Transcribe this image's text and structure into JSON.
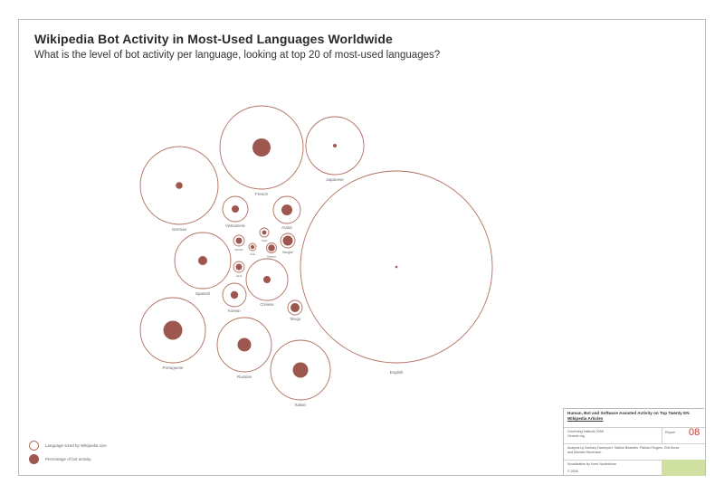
{
  "header": {
    "title": "Wikipedia Bot Activity in Most-Used Languages Worldwide",
    "subtitle": "What is the level of bot activity per language, looking at top 20 of most-used languages?"
  },
  "legend": {
    "outline_label": "Language sized by Wikipedia size",
    "fill_label": "Percentage of bot activity"
  },
  "colors": {
    "outline": "#b07060",
    "fill": "#9e574e",
    "frame": "#bdbdbd",
    "green_box": "#cfe0a0",
    "number": "#c0392b"
  },
  "chart_data": {
    "type": "bubble",
    "encoding": "outer circle size = Wikipedia size; inner filled circle = percentage of bot activity",
    "series": [
      {
        "name": "English",
        "outer": 106,
        "inner": 1.3
      },
      {
        "name": "French",
        "outer": 46,
        "inner": 10
      },
      {
        "name": "Japanese",
        "outer": 32,
        "inner": 2
      },
      {
        "name": "German",
        "outer": 43,
        "inner": 3.8
      },
      {
        "name": "Vietnamese",
        "outer": 14,
        "inner": 4
      },
      {
        "name": "Arabic",
        "outer": 15,
        "inner": 6
      },
      {
        "name": "Spanish",
        "outer": 31,
        "inner": 5
      },
      {
        "name": "Bengali",
        "outer": 8,
        "inner": 5.5
      },
      {
        "name": "Tamil",
        "outer": 5,
        "inner": 2.4
      },
      {
        "name": "Urdu",
        "outer": 4,
        "inner": 2.2
      },
      {
        "name": "Marathi",
        "outer": 6,
        "inner": 3.5
      },
      {
        "name": "Javanese",
        "outer": 5.5,
        "inner": 3.8
      },
      {
        "name": "Hindi",
        "outer": 6,
        "inner": 3.5
      },
      {
        "name": "Chinese",
        "outer": 23,
        "inner": 4
      },
      {
        "name": "Korean",
        "outer": 13,
        "inner": 4.2
      },
      {
        "name": "Telugu",
        "outer": 8,
        "inner": 5
      },
      {
        "name": "Portuguese",
        "outer": 36,
        "inner": 10.5
      },
      {
        "name": "Russian",
        "outer": 30,
        "inner": 7.5
      },
      {
        "name": "Italian",
        "outer": 33,
        "inner": 8.5
      }
    ]
  },
  "infobox": {
    "title_line1": "Human, Bot and Software Assisted Activity on Top Twenty EN",
    "title_line2": "Wikipedia Articles",
    "org_line1": "Governing Instincts 2008",
    "org_line2": "Generic.org",
    "report_label": "Report",
    "report_number": "08",
    "analysis_line1": "Analysis by Zachary Davenport, Sabine Beaubier, Richard Rogers, Erik Borra",
    "analysis_line2": "and Michael Stevenson",
    "viz_line": "Visualization by Koen Nooteboom",
    "copyright": "© 2008"
  }
}
